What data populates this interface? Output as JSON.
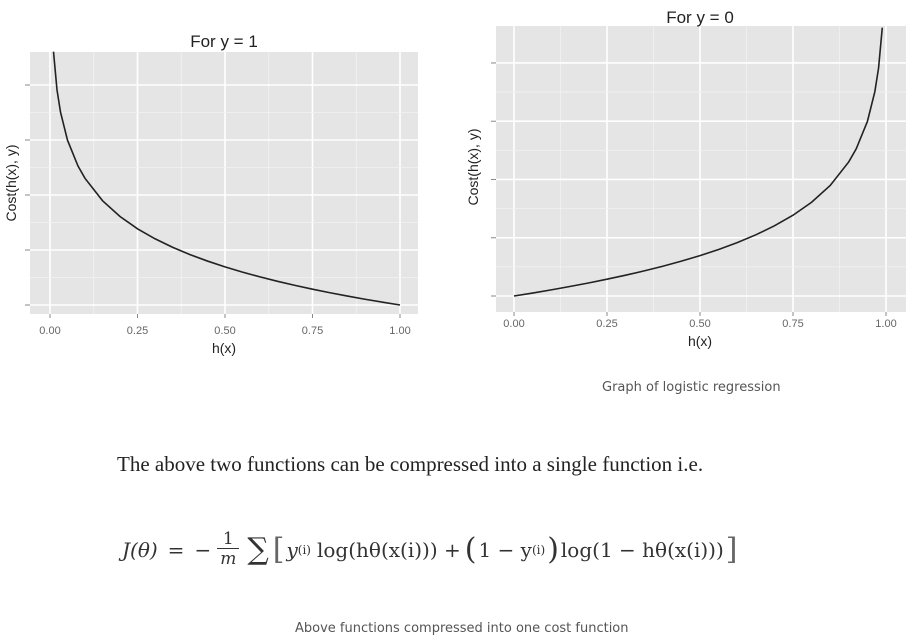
{
  "chart_data": [
    {
      "type": "line",
      "title": "For y = 1",
      "xlabel": "h(x)",
      "ylabel": "Cost(h(x), y)",
      "x_ticks": [
        "0.00",
        "0.25",
        "0.50",
        "0.75",
        "1.00"
      ],
      "xlim": [
        0,
        1
      ],
      "ylim": [
        0,
        4.6
      ],
      "y_tick_labels_visible": false,
      "grid": true,
      "background": "#e5e5e5",
      "line_color": "#222222",
      "series": [
        {
          "x": [
            0.01,
            0.02,
            0.03,
            0.05,
            0.08,
            0.1,
            0.15,
            0.2,
            0.25,
            0.3,
            0.35,
            0.4,
            0.45,
            0.5,
            0.55,
            0.6,
            0.65,
            0.7,
            0.75,
            0.8,
            0.85,
            0.9,
            0.95,
            1.0
          ],
          "y": [
            4.605,
            3.912,
            3.507,
            2.996,
            2.526,
            2.303,
            1.897,
            1.609,
            1.386,
            1.204,
            1.05,
            0.916,
            0.799,
            0.693,
            0.598,
            0.511,
            0.431,
            0.357,
            0.288,
            0.223,
            0.163,
            0.105,
            0.051,
            0.0
          ]
        }
      ]
    },
    {
      "type": "line",
      "title": "For y = 0",
      "xlabel": "h(x)",
      "ylabel": "Cost(h(x), y)",
      "x_ticks": [
        "0.00",
        "0.25",
        "0.50",
        "0.75",
        "1.00"
      ],
      "xlim": [
        0,
        1
      ],
      "ylim": [
        0,
        4.6
      ],
      "y_tick_labels_visible": false,
      "grid": true,
      "background": "#e5e5e5",
      "line_color": "#222222",
      "series": [
        {
          "x": [
            0.0,
            0.05,
            0.1,
            0.15,
            0.2,
            0.25,
            0.3,
            0.35,
            0.4,
            0.45,
            0.5,
            0.55,
            0.6,
            0.65,
            0.7,
            0.75,
            0.8,
            0.85,
            0.9,
            0.92,
            0.95,
            0.97,
            0.98,
            0.99
          ],
          "y": [
            0.0,
            0.051,
            0.105,
            0.163,
            0.223,
            0.288,
            0.357,
            0.431,
            0.511,
            0.598,
            0.693,
            0.799,
            0.916,
            1.05,
            1.204,
            1.386,
            1.609,
            1.897,
            2.303,
            2.526,
            2.996,
            3.507,
            3.912,
            4.605
          ]
        }
      ]
    }
  ],
  "captions": {
    "graph": "Graph of logistic regression",
    "formula": "Above functions compressed into one cost function"
  },
  "text": {
    "paragraph": "The above two functions can be compressed into a single function i.e."
  },
  "formula": {
    "lhs": "J(θ)",
    "equals": "=",
    "minus": "−",
    "numerator": "1",
    "denominator": "m",
    "sum": "∑",
    "open_bracket": "[",
    "y_var": "y",
    "superscript": "(i)",
    "log_term_1": "log(hθ(x(i))) +",
    "open_paren": "(",
    "one_minus": "1 − y",
    "close_paren": ")",
    "log_term_2": "log(1 − hθ(x(i)))",
    "close_bracket": "]"
  }
}
